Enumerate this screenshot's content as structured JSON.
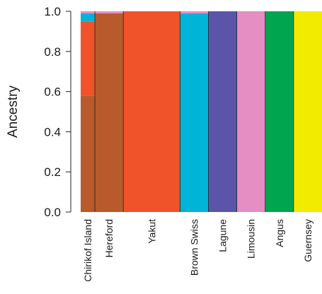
{
  "chart_data": {
    "type": "bar",
    "subtype": "stacked-structure-plot",
    "ylabel": "Ancestry",
    "ylim": [
      0,
      1
    ],
    "yticks": [
      0.0,
      0.2,
      0.4,
      0.6,
      0.8,
      1.0
    ],
    "ytick_labels": [
      "0.0",
      "0.2",
      "0.4",
      "0.6",
      "0.8",
      "1.0"
    ],
    "grid": false,
    "colors": {
      "hereford": "#b85a2c",
      "yakut": "#f0522a",
      "brown_swiss": "#00b4d8",
      "lagune": "#5a55a8",
      "limousin": "#e48ec3",
      "angus": "#00a550",
      "guernsey": "#f2eb00",
      "divider": "#222222"
    },
    "populations": [
      {
        "name": "Chirikof Island",
        "individuals": 20,
        "dominant": "hereford",
        "ancestry": {
          "hereford": 0.58,
          "yakut": 0.37,
          "brown_swiss": 0.04,
          "limousin": 0.01
        }
      },
      {
        "name": "Hereford",
        "individuals": 40,
        "dominant": "hereford",
        "ancestry": {
          "hereford": 0.99,
          "limousin": 0.01
        }
      },
      {
        "name": "Yakut",
        "individuals": 80,
        "dominant": "yakut",
        "ancestry": {
          "yakut": 1.0
        }
      },
      {
        "name": "Brown Swiss",
        "individuals": 40,
        "dominant": "brown_swiss",
        "ancestry": {
          "brown_swiss": 0.99,
          "limousin": 0.01
        }
      },
      {
        "name": "Lagune",
        "individuals": 40,
        "dominant": "lagune",
        "ancestry": {
          "lagune": 1.0
        }
      },
      {
        "name": "Limousin",
        "individuals": 40,
        "dominant": "limousin",
        "ancestry": {
          "limousin": 1.0
        }
      },
      {
        "name": "Angus",
        "individuals": 40,
        "dominant": "angus",
        "ancestry": {
          "angus": 1.0
        }
      },
      {
        "name": "Guernsey",
        "individuals": 40,
        "dominant": "guernsey",
        "ancestry": {
          "guernsey": 1.0
        }
      }
    ]
  }
}
